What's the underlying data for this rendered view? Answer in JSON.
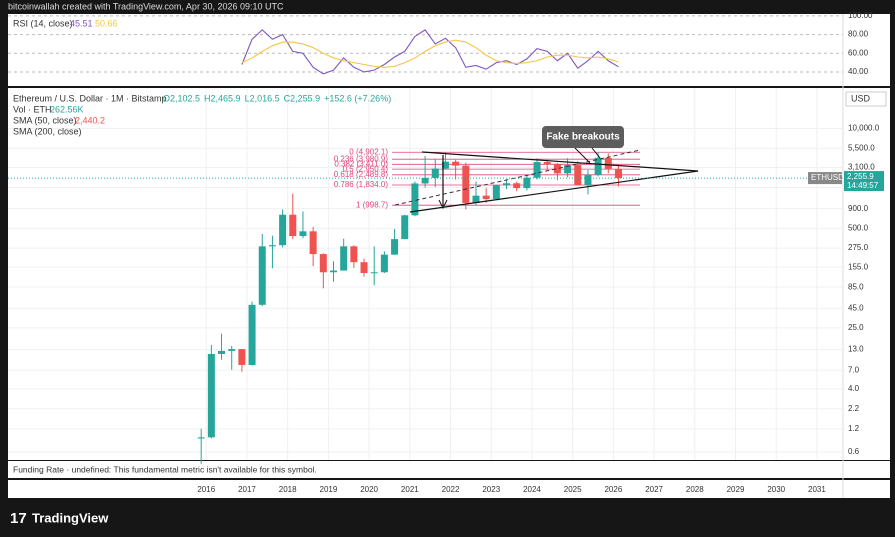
{
  "header": {
    "credit": "bitcoinwallah created with TradingView.com, Apr 30, 2026 09:10 UTC"
  },
  "chart_data": [
    {
      "type": "candlestick",
      "title": "Ethereum / U.S. Dollar · 1M · Bitstamp",
      "ohlc_legend": [
        "O2,102.5",
        "H2,465.9",
        "L2,016.5",
        "C2,255.9",
        "+152.6 (+7.26%)"
      ],
      "volume_legend": {
        "label": "Vol · ETH",
        "value": "262.56K"
      },
      "sma50_legend": {
        "label": "SMA (50, close)",
        "value": "2,440.2"
      },
      "sma200_legend": "SMA (200, close)",
      "up_color": "#26a69a",
      "down_color": "#ef5350",
      "x": [
        2015.875,
        2016.125,
        2016.375,
        2016.625,
        2016.875,
        2017.125,
        2017.375,
        2017.625,
        2017.875,
        2018.125,
        2018.375,
        2018.625,
        2018.875,
        2019.125,
        2019.375,
        2019.625,
        2019.875,
        2020.125,
        2020.375,
        2020.625,
        2020.875,
        2021.125,
        2021.375,
        2021.625,
        2021.875,
        2022.125,
        2022.375,
        2022.625,
        2022.875,
        2023.125,
        2023.375,
        2023.625,
        2023.875,
        2024.125,
        2024.375,
        2024.625,
        2024.875,
        2025.125,
        2025.375,
        2025.625,
        2025.875,
        2026.125
      ],
      "open": [
        0.9,
        0.93,
        11.4,
        12.5,
        13.2,
        8.2,
        50,
        290,
        300,
        750,
        395,
        455,
        230,
        133,
        140,
        290,
        180,
        130,
        133,
        226,
        360,
        737,
        1920,
        2270,
        3000,
        3690,
        3280,
        1070,
        1330,
        1200,
        1820,
        1930,
        1670,
        2280,
        3650,
        3420,
        2600,
        3330,
        1820,
        2490,
        4150,
        2970
      ],
      "high": [
        1.2,
        15,
        21,
        14.5,
        13.2,
        55,
        420,
        400,
        880,
        1420,
        830,
        520,
        235,
        185,
        365,
        300,
        200,
        290,
        250,
        490,
        750,
        2040,
        4380,
        4030,
        4870,
        3900,
        3580,
        2030,
        1660,
        1860,
        2140,
        2030,
        2450,
        4090,
        3970,
        3560,
        4110,
        3740,
        2880,
        4950,
        4750,
        3400
      ],
      "low": [
        0.42,
        0.9,
        9.6,
        7.1,
        6.7,
        8,
        48,
        150,
        280,
        360,
        370,
        160,
        82,
        100,
        140,
        152,
        117,
        90,
        130,
        225,
        360,
        715,
        1700,
        1720,
        2900,
        2160,
        880,
        1000,
        1070,
        1190,
        1620,
        1520,
        1550,
        2160,
        2810,
        2120,
        2310,
        1800,
        1380,
        2370,
        2620,
        1750
      ],
      "close": [
        0.93,
        11.4,
        12.5,
        13.2,
        8.2,
        50,
        290,
        300,
        750,
        395,
        455,
        230,
        133,
        140,
        290,
        180,
        130,
        133,
        226,
        360,
        737,
        1920,
        2270,
        3000,
        3690,
        3280,
        1070,
        1330,
        1200,
        1820,
        1930,
        1670,
        2280,
        3650,
        3420,
        2600,
        3330,
        1820,
        2490,
        4150,
        2970,
        2255.9
      ],
      "xlim": [
        2011.13,
        2031.64
      ],
      "xticks": [
        2016,
        2017,
        2018,
        2019,
        2020,
        2021,
        2022,
        2023,
        2024,
        2025,
        2026,
        2027,
        2028,
        2029,
        2030,
        2031
      ],
      "log_scale": true,
      "ylim": [
        0.5,
        30000
      ],
      "yticks": [
        0.6,
        {
          "value": 1.2,
          "label": "1.2"
        },
        {
          "value": 2.2,
          "label": "2.2"
        },
        {
          "value": 4,
          "label": "4.0"
        },
        {
          "value": 7,
          "label": "7.0"
        },
        {
          "value": 13,
          "label": "13.0"
        },
        {
          "value": 25,
          "label": "25.0"
        },
        {
          "value": 45,
          "label": "45.0"
        },
        {
          "value": 85,
          "label": "85.0"
        },
        {
          "value": 155,
          "label": "155.0"
        },
        {
          "value": 275,
          "label": "275.0"
        },
        {
          "value": 500,
          "label": "500.0"
        },
        {
          "value": 900,
          "label": "900.0"
        },
        {
          "value": 1700,
          "label": "1,700.0"
        },
        {
          "value": 3100,
          "label": "3,100.0"
        },
        {
          "value": 5500,
          "label": "5,500.0"
        },
        {
          "value": 10000,
          "label": "10,000.0"
        }
      ],
      "fib_color": "#e0457b",
      "fib_levels": [
        {
          "value": 4902.1,
          "label": "0 (4,902.1)"
        },
        {
          "value": 3980.9,
          "label": "0.236 (3,980.9)"
        },
        {
          "value": 3411,
          "label": "0.382 (3,411.0)"
        },
        {
          "value": 2950.4,
          "label": "0.5 (2,950.4)"
        },
        {
          "value": 2489.8,
          "label": "0.618 (2,489.8)"
        },
        {
          "value": 1834,
          "label": "0.786 (1,834.0)"
        },
        {
          "value": 998.7,
          "label": "1 (998.7)"
        }
      ],
      "annotation": "Fake breakouts",
      "currency": "USD",
      "symbol": "ETHUSD",
      "last_label": "2,255.9",
      "countdown": "14:49:57"
    },
    {
      "type": "line",
      "title": "RSI (14, close)",
      "value_label": "45.51",
      "ma_label": "50.66",
      "x": [
        2015.875,
        2016.125,
        2016.375,
        2016.625,
        2016.875,
        2017.125,
        2017.375,
        2017.625,
        2017.875,
        2018.125,
        2018.375,
        2018.625,
        2018.875,
        2019.125,
        2019.375,
        2019.625,
        2019.875,
        2020.125,
        2020.375,
        2020.625,
        2020.875,
        2021.125,
        2021.375,
        2021.625,
        2021.875,
        2022.125,
        2022.375,
        2022.625,
        2022.875,
        2023.125,
        2023.375,
        2023.625,
        2023.875,
        2024.125,
        2024.375,
        2024.625,
        2024.875,
        2025.125,
        2025.375,
        2025.625,
        2025.875,
        2026.125
      ],
      "series": [
        {
          "name": "RSI",
          "color": "#7e57c2",
          "values": [
            null,
            null,
            null,
            null,
            48,
            75,
            85,
            75,
            80,
            62,
            60,
            45,
            38,
            42,
            55,
            45,
            40,
            42,
            48,
            56,
            62,
            78,
            85,
            70,
            76,
            66,
            45,
            47,
            43,
            50,
            52,
            48,
            54,
            65,
            62,
            52,
            60,
            44,
            52,
            62,
            52,
            45.51
          ]
        },
        {
          "name": "RSI-based MA",
          "color": "#f5c542",
          "values": [
            null,
            null,
            null,
            null,
            50,
            55,
            62,
            68,
            72,
            72,
            70,
            66,
            60,
            55,
            52,
            50,
            48,
            46,
            45,
            46,
            50,
            55,
            62,
            68,
            72,
            74,
            72,
            66,
            58,
            52,
            50,
            49,
            50,
            52,
            56,
            58,
            58,
            56,
            55,
            56,
            54,
            50.66
          ]
        }
      ],
      "ylim": [
        25,
        102
      ],
      "yticks": [
        {
          "value": 100,
          "label": "100.00"
        },
        {
          "value": 80,
          "label": "80.00"
        },
        {
          "value": 60,
          "label": "60.00"
        },
        {
          "value": 40,
          "label": "40.00"
        }
      ]
    }
  ],
  "funding": "Funding Rate · undefined: This fundamental metric isn't available for this symbol.",
  "footer": {
    "logo": "TradingView"
  }
}
